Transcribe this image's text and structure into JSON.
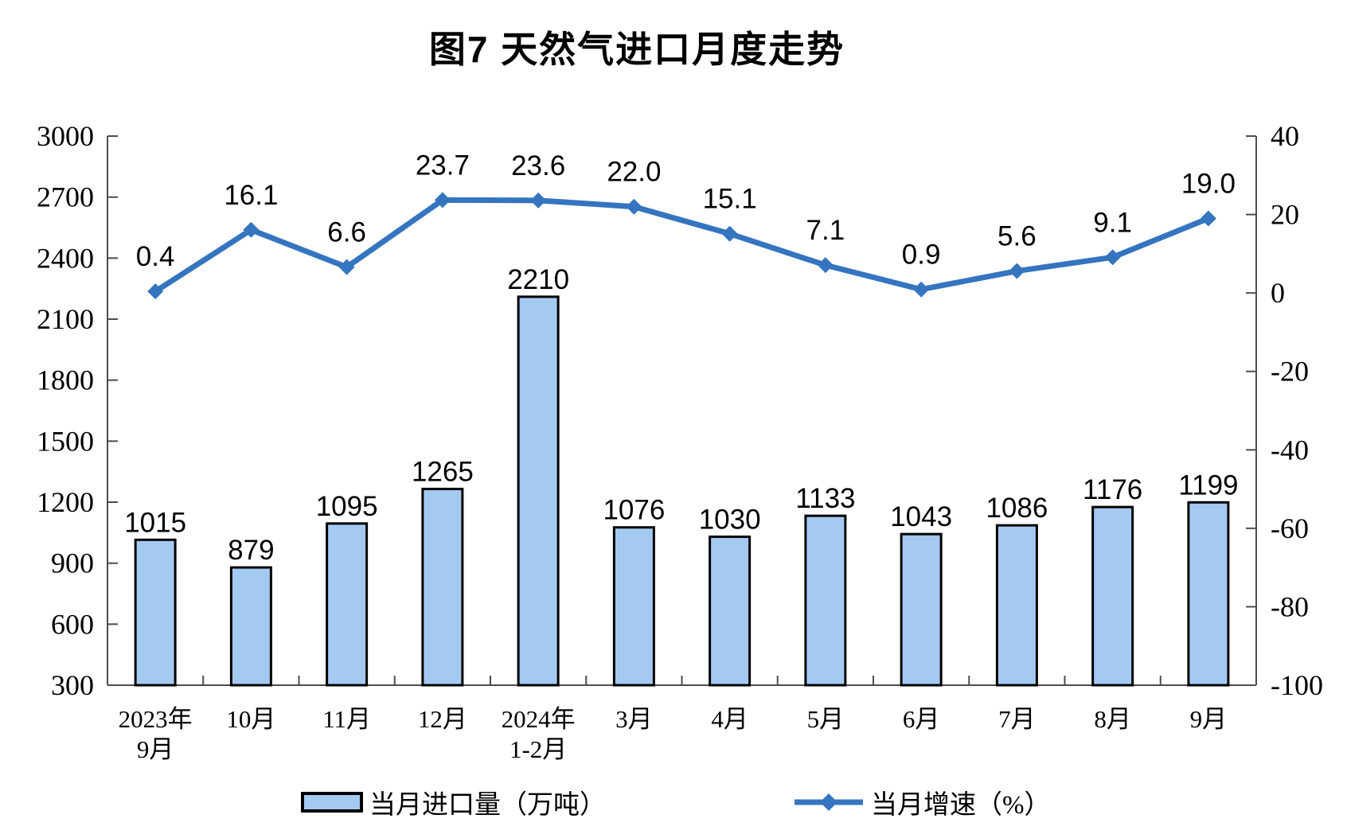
{
  "title": "图7 天然气进口月度走势",
  "legend": {
    "bar_label": "当月进口量（万吨）",
    "line_label": "当月增速（%）"
  },
  "colors": {
    "bar_fill": "#A5CAF2",
    "bar_border": "#000000",
    "line": "#3575C0",
    "axis_line": "#4D4D4D",
    "label_text": "#000000"
  },
  "chart_data": {
    "type": "bar+line combo",
    "title": "图7 天然气进口月度走势",
    "categories": [
      [
        "2023年",
        "9月"
      ],
      [
        "10月"
      ],
      [
        "11月"
      ],
      [
        "12月"
      ],
      [
        "2024年",
        "1-2月"
      ],
      [
        "3月"
      ],
      [
        "4月"
      ],
      [
        "5月"
      ],
      [
        "6月"
      ],
      [
        "7月"
      ],
      [
        "8月"
      ],
      [
        "9月"
      ]
    ],
    "series": [
      {
        "name": "当月进口量（万吨）",
        "type": "bar",
        "axis": "left",
        "values": [
          1015,
          879,
          1095,
          1265,
          2210,
          1076,
          1030,
          1133,
          1043,
          1086,
          1176,
          1199
        ]
      },
      {
        "name": "当月增速（%）",
        "type": "line",
        "axis": "right",
        "values": [
          0.4,
          16.1,
          6.6,
          23.7,
          23.6,
          22.0,
          15.1,
          7.1,
          0.9,
          5.6,
          9.1,
          19.0
        ]
      }
    ],
    "left_axis": {
      "min": 300,
      "max": 3000,
      "step": 300,
      "ticks": [
        300,
        600,
        900,
        1200,
        1500,
        1800,
        2100,
        2400,
        2700,
        3000
      ]
    },
    "right_axis": {
      "min": -100,
      "max": 40,
      "step": 20,
      "ticks": [
        -100,
        -80,
        -60,
        -40,
        -20,
        0,
        20,
        40
      ]
    },
    "grid": false,
    "legend_position": "bottom",
    "data_labels": true
  }
}
